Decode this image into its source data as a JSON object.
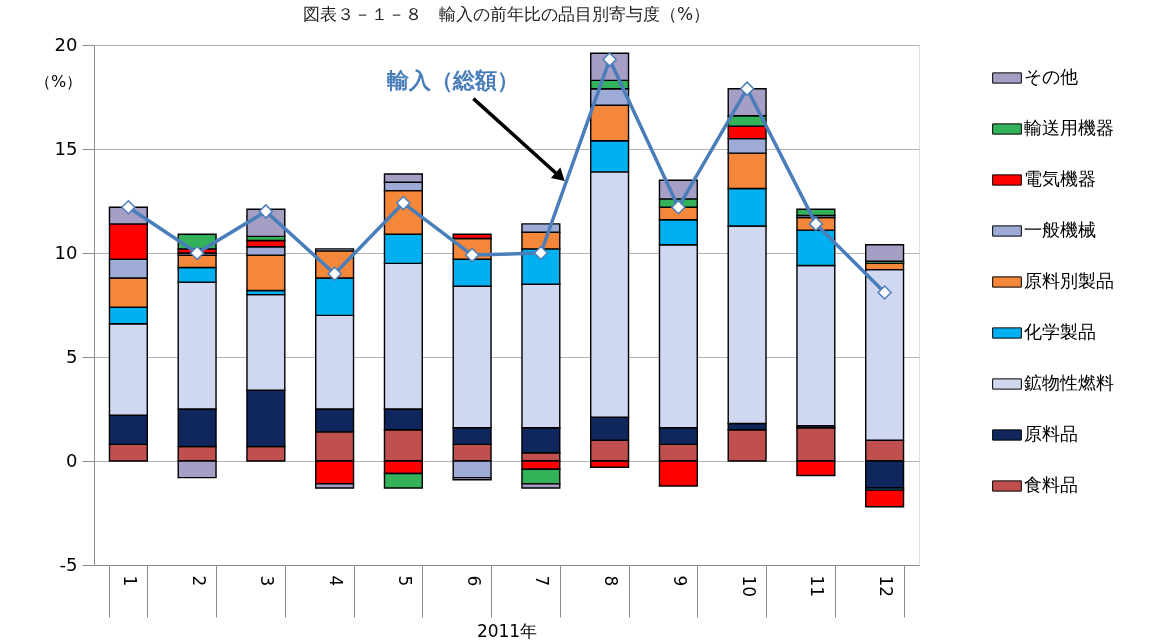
{
  "chart_data": {
    "type": "bar",
    "title": "図表３－１－８　輸入の前年比の品目別寄与度（%）",
    "xlabel": "2011年",
    "ylabel": "（%）",
    "categories": [
      "1",
      "2",
      "3",
      "4",
      "5",
      "6",
      "7",
      "8",
      "9",
      "10",
      "11",
      "12"
    ],
    "stacked": true,
    "ylim": [
      -5,
      20
    ],
    "yticks": [
      -5,
      0,
      5,
      10,
      15,
      20
    ],
    "grid": "y",
    "legend": "right",
    "series": [
      {
        "name": "食料品",
        "color": "#c0504d",
        "values": [
          0.8,
          0.7,
          0.7,
          1.4,
          1.5,
          0.8,
          0.4,
          1.0,
          0.8,
          1.5,
          1.6,
          1.0
        ]
      },
      {
        "name": "原料品",
        "color": "#10275e",
        "values": [
          1.4,
          1.8,
          2.7,
          1.1,
          1.0,
          0.8,
          1.2,
          1.1,
          0.8,
          0.3,
          0.1,
          -1.3
        ]
      },
      {
        "name": "鉱物性燃料",
        "color": "#d0d7f0",
        "values": [
          4.4,
          6.1,
          4.6,
          4.5,
          7.0,
          6.8,
          6.9,
          11.8,
          8.8,
          9.5,
          7.7,
          8.2
        ]
      },
      {
        "name": "化学製品",
        "color": "#00b0f0",
        "values": [
          0.8,
          0.7,
          0.2,
          1.8,
          1.4,
          1.3,
          1.7,
          1.5,
          1.2,
          1.8,
          1.7,
          -0.1
        ]
      },
      {
        "name": "原料別製品",
        "color": "#f5873a",
        "values": [
          1.4,
          0.6,
          1.7,
          1.3,
          2.1,
          1.0,
          0.8,
          1.7,
          0.6,
          1.7,
          0.6,
          0.3
        ]
      },
      {
        "name": "一般機械",
        "color": "#9dabd6",
        "values": [
          0.9,
          0.1,
          0.4,
          0.1,
          0.4,
          -0.8,
          0.4,
          0.8,
          null,
          0.7,
          0.1,
          null
        ]
      },
      {
        "name": "電気機器",
        "color": "#ff0000",
        "values": [
          1.7,
          0.2,
          0.3,
          -1.1,
          -0.6,
          0.2,
          -0.4,
          -0.3,
          -1.2,
          0.6,
          -0.7,
          -0.8
        ]
      },
      {
        "name": "輸送用機器",
        "color": "#33b25a",
        "values": [
          null,
          0.7,
          0.2,
          null,
          -0.7,
          null,
          -0.7,
          0.4,
          0.4,
          0.5,
          0.3,
          0.1
        ]
      },
      {
        "name": "その他",
        "color": "#a59fc6",
        "values": [
          0.8,
          -0.8,
          1.3,
          -0.2,
          0.4,
          -0.1,
          -0.2,
          1.3,
          0.9,
          1.3,
          null,
          0.8
        ]
      },
      {
        "name": "輸入（総額）",
        "type": "line",
        "marker": "diamond",
        "color": "#4a7ebb",
        "values": [
          12.2,
          10.0,
          12.0,
          9.0,
          12.4,
          9.9,
          10.0,
          19.3,
          12.2,
          17.9,
          11.4,
          8.1
        ]
      }
    ]
  }
}
